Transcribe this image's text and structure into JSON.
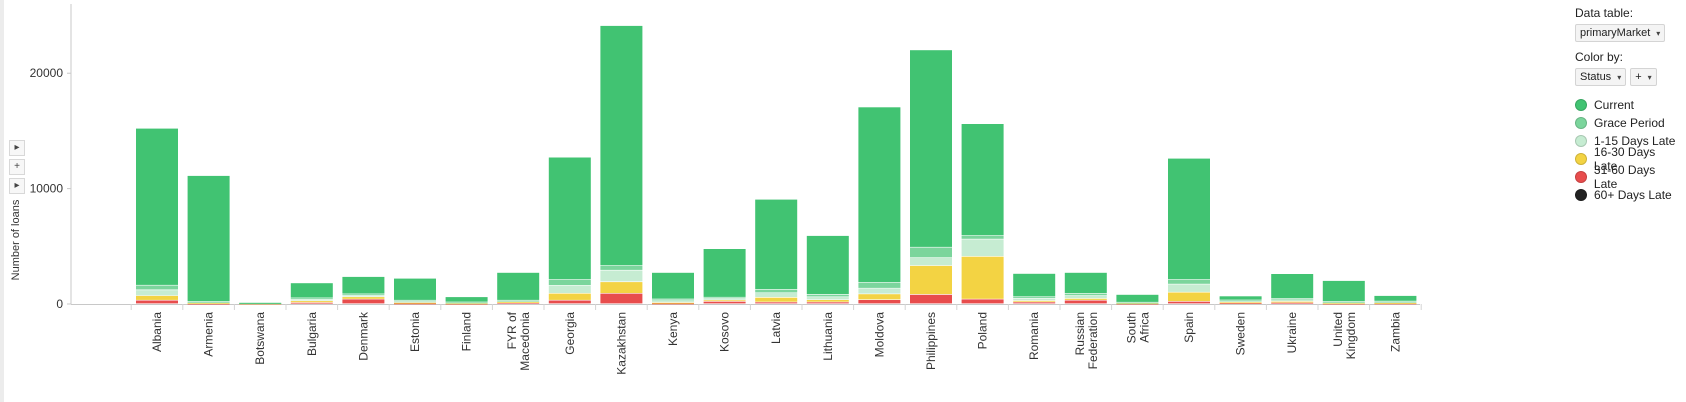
{
  "axis": {
    "ylabel": "Number of loans"
  },
  "controls": {
    "expand": "▸",
    "add": "+",
    "collapse": "▸"
  },
  "legend": {
    "data_table_label": "Data table:",
    "data_table_value": "primaryMarket",
    "color_by_label": "Color by:",
    "color_by_value": "Status",
    "add_label": "+",
    "caret": "▾",
    "items": [
      {
        "name": "Current",
        "color": "#41c372"
      },
      {
        "name": "Grace Period",
        "color": "#7bd59c"
      },
      {
        "name": "1-15 Days Late",
        "color": "#c6ecd2"
      },
      {
        "name": "16-30 Days Late",
        "color": "#f3d343"
      },
      {
        "name": "31-60 Days Late",
        "color": "#e84d4d"
      },
      {
        "name": "60+ Days Late",
        "color": "#222222"
      }
    ]
  },
  "chart_data": {
    "type": "bar",
    "stacked": true,
    "title": "",
    "xlabel": "",
    "ylabel": "Number of loans",
    "ylim": [
      0,
      26000
    ],
    "yticks": [
      0,
      10000,
      20000
    ],
    "grid": false,
    "legend_position": "right",
    "categories": [
      "Albania",
      "Armenia",
      "Botswana",
      "Bulgaria",
      "Denmark",
      "Estonia",
      "Finland",
      "FYR of Macedonia",
      "Georgia",
      "Kazakhstan",
      "Kenya",
      "Kosovo",
      "Latvia",
      "Lithuania",
      "Moldova",
      "Philippines",
      "Poland",
      "Romania",
      "Russian Federation",
      "South Africa",
      "Spain",
      "Sweden",
      "Ukraine",
      "United Kingdom",
      "Zambia"
    ],
    "series": [
      {
        "name": "60+ Days Late",
        "color": "#222222",
        "values": [
          0,
          0,
          0,
          0,
          0,
          0,
          0,
          0,
          0,
          0,
          0,
          0,
          0,
          0,
          0,
          0,
          0,
          0,
          0,
          0,
          0,
          0,
          0,
          0,
          0
        ]
      },
      {
        "name": "31-60 Days Late",
        "color": "#e84d4d",
        "values": [
          300,
          30,
          20,
          100,
          400,
          40,
          20,
          100,
          300,
          900,
          40,
          200,
          150,
          150,
          350,
          800,
          400,
          150,
          300,
          30,
          200,
          80,
          100,
          30,
          40
        ]
      },
      {
        "name": "16-30 Days Late",
        "color": "#f3d343",
        "values": [
          400,
          40,
          20,
          150,
          200,
          60,
          30,
          60,
          600,
          1000,
          60,
          120,
          400,
          200,
          500,
          2500,
          3700,
          120,
          150,
          30,
          800,
          60,
          100,
          30,
          40
        ]
      },
      {
        "name": "1-15 Days Late",
        "color": "#c6ecd2",
        "values": [
          500,
          80,
          20,
          150,
          150,
          100,
          50,
          80,
          700,
          1000,
          150,
          150,
          400,
          250,
          500,
          700,
          1500,
          200,
          250,
          40,
          700,
          100,
          150,
          80,
          80
        ]
      },
      {
        "name": "Grace Period",
        "color": "#7bd59c",
        "values": [
          400,
          50,
          10,
          100,
          100,
          100,
          50,
          60,
          500,
          400,
          150,
          100,
          300,
          200,
          500,
          900,
          300,
          150,
          200,
          30,
          400,
          80,
          100,
          60,
          60
        ]
      },
      {
        "name": "Current",
        "color": "#41c372",
        "values": [
          13600,
          10900,
          30,
          1300,
          1500,
          1900,
          450,
          2400,
          10600,
          20800,
          2300,
          4200,
          7800,
          5100,
          15200,
          17100,
          9700,
          2000,
          1800,
          670,
          10500,
          350,
          2150,
          1800,
          480
        ]
      }
    ]
  }
}
